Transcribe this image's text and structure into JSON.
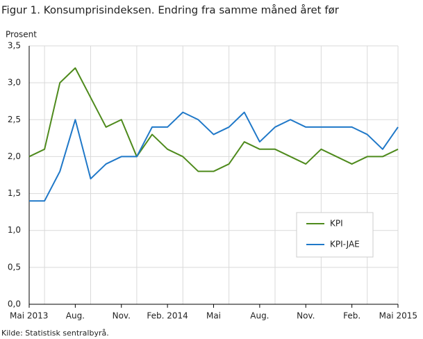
{
  "chart_data": {
    "type": "line",
    "title": "Figur 1. Konsumprisindeksen. Endring fra samme måned året før",
    "y_label": "Prosent",
    "source": "Kilde: Statistisk sentralbyrå.",
    "categories": [
      "Mai 2013",
      null,
      null,
      "Aug.",
      null,
      null,
      "Nov.",
      null,
      null,
      "Feb. 2014",
      null,
      null,
      "Mai",
      null,
      null,
      "Aug.",
      null,
      null,
      "Nov.",
      null,
      null,
      "Feb.",
      null,
      null,
      "Mai 2015"
    ],
    "series": [
      {
        "name": "KPI",
        "color": "#4e8a1c",
        "values": [
          2.0,
          2.1,
          3.0,
          3.2,
          2.8,
          2.4,
          2.5,
          2.0,
          2.3,
          2.1,
          2.0,
          1.8,
          1.8,
          1.9,
          2.2,
          2.1,
          2.1,
          2.0,
          1.9,
          2.1,
          2.0,
          1.9,
          2.0,
          2.0,
          2.1
        ]
      },
      {
        "name": "KPI-JAE",
        "color": "#1f78c8",
        "values": [
          1.4,
          1.4,
          1.8,
          2.5,
          1.7,
          1.9,
          2.0,
          2.0,
          2.4,
          2.4,
          2.6,
          2.5,
          2.3,
          2.4,
          2.6,
          2.2,
          2.4,
          2.5,
          2.4,
          2.4,
          2.4,
          2.4,
          2.3,
          2.1,
          2.4
        ]
      }
    ],
    "ylim": [
      0,
      3.5
    ],
    "yticks": [
      {
        "value": 0,
        "label": "0,0"
      },
      {
        "value": 0.5,
        "label": "0,5"
      },
      {
        "value": 1,
        "label": "1,0"
      },
      {
        "value": 1.5,
        "label": "1,5"
      },
      {
        "value": 2,
        "label": "2,0"
      },
      {
        "value": 2.5,
        "label": "2,5"
      },
      {
        "value": 3,
        "label": "3,0"
      },
      {
        "value": 3.5,
        "label": "3,5"
      }
    ],
    "grid": true,
    "legend": "lower right"
  }
}
